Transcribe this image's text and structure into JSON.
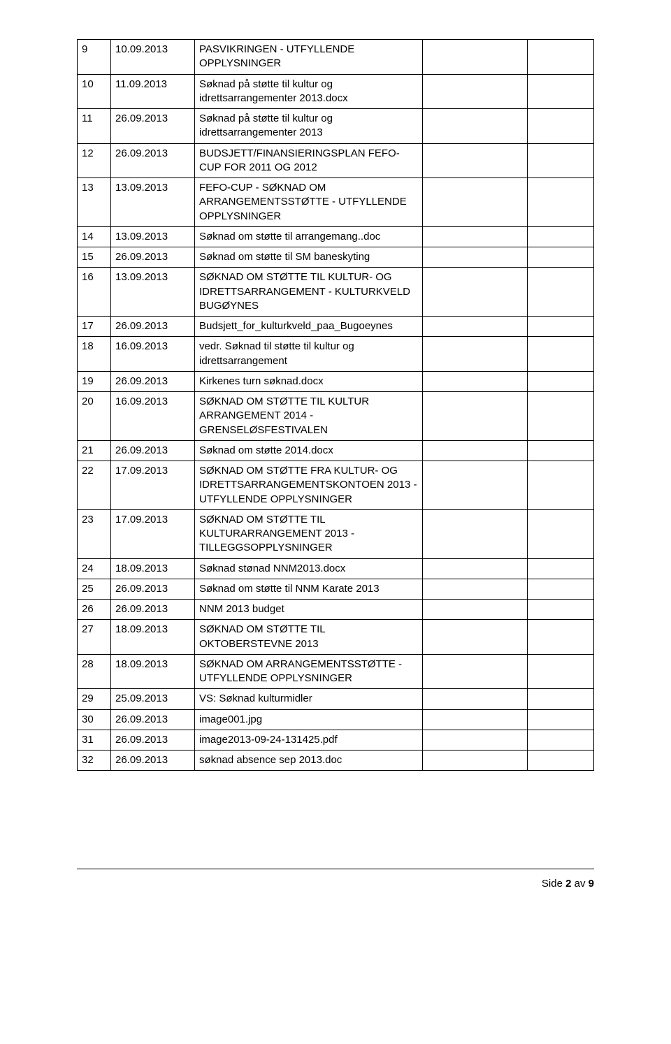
{
  "table": {
    "rows": [
      {
        "n": "9",
        "date": "10.09.2013",
        "desc": "PASVIKRINGEN - UTFYLLENDE OPPLYSNINGER"
      },
      {
        "n": "10",
        "date": "11.09.2013",
        "desc": "Søknad på støtte til kultur og idrettsarrangementer 2013.docx"
      },
      {
        "n": "11",
        "date": "26.09.2013",
        "desc": "Søknad på støtte til kultur og idrettsarrangementer 2013"
      },
      {
        "n": "12",
        "date": "26.09.2013",
        "desc": "BUDSJETT/FINANSIERINGSPLAN FEFO-CUP FOR 2011 OG 2012"
      },
      {
        "n": "13",
        "date": "13.09.2013",
        "desc": "FEFO-CUP - SØKNAD OM ARRANGEMENTSSTØTTE - UTFYLLENDE OPPLYSNINGER"
      },
      {
        "n": "14",
        "date": "13.09.2013",
        "desc": "Søknad om støtte til arrangemang..doc"
      },
      {
        "n": "15",
        "date": "26.09.2013",
        "desc": "Søknad om støtte til SM baneskyting"
      },
      {
        "n": "16",
        "date": "13.09.2013",
        "desc": "SØKNAD OM STØTTE TIL KULTUR- OG IDRETTSARRANGEMENT - KULTURKVELD BUGØYNES"
      },
      {
        "n": "17",
        "date": "26.09.2013",
        "desc": "Budsjett_for_kulturkveld_paa_Bugoeynes"
      },
      {
        "n": "18",
        "date": "16.09.2013",
        "desc": "vedr. Søknad til støtte til kultur og idrettsarrangement"
      },
      {
        "n": "19",
        "date": "26.09.2013",
        "desc": "Kirkenes turn søknad.docx"
      },
      {
        "n": "20",
        "date": "16.09.2013",
        "desc": "SØKNAD OM STØTTE TIL KULTUR ARRANGEMENT 2014 - GRENSELØSFESTIVALEN"
      },
      {
        "n": "21",
        "date": "26.09.2013",
        "desc": "Søknad om støtte 2014.docx"
      },
      {
        "n": "22",
        "date": "17.09.2013",
        "desc": "SØKNAD OM STØTTE FRA KULTUR- OG IDRETTSARRANGEMENTSKONTOEN 2013 - UTFYLLENDE OPPLYSNINGER"
      },
      {
        "n": "23",
        "date": "17.09.2013",
        "desc": "SØKNAD OM STØTTE TIL KULTURARRANGEMENT 2013 - TILLEGGSOPPLYSNINGER"
      },
      {
        "n": "24",
        "date": "18.09.2013",
        "desc": "Søknad stønad NNM2013.docx"
      },
      {
        "n": "25",
        "date": "26.09.2013",
        "desc": "Søknad om støtte til NNM Karate 2013"
      },
      {
        "n": "26",
        "date": "26.09.2013",
        "desc": "NNM 2013 budget"
      },
      {
        "n": "27",
        "date": "18.09.2013",
        "desc": "SØKNAD OM STØTTE TIL OKTOBERSTEVNE 2013"
      },
      {
        "n": "28",
        "date": "18.09.2013",
        "desc": "SØKNAD OM ARRANGEMENTSSTØTTE - UTFYLLENDE OPPLYSNINGER"
      },
      {
        "n": "29",
        "date": "25.09.2013",
        "desc": "VS: Søknad kulturmidler"
      },
      {
        "n": "30",
        "date": "26.09.2013",
        "desc": "image001.jpg"
      },
      {
        "n": "31",
        "date": "26.09.2013",
        "desc": "image2013-09-24-131425.pdf"
      },
      {
        "n": "32",
        "date": "26.09.2013",
        "desc": "søknad absence  sep 2013.doc"
      }
    ]
  },
  "footer": {
    "prefix": "Side ",
    "page": "2",
    "sep": " av ",
    "total": "9"
  }
}
